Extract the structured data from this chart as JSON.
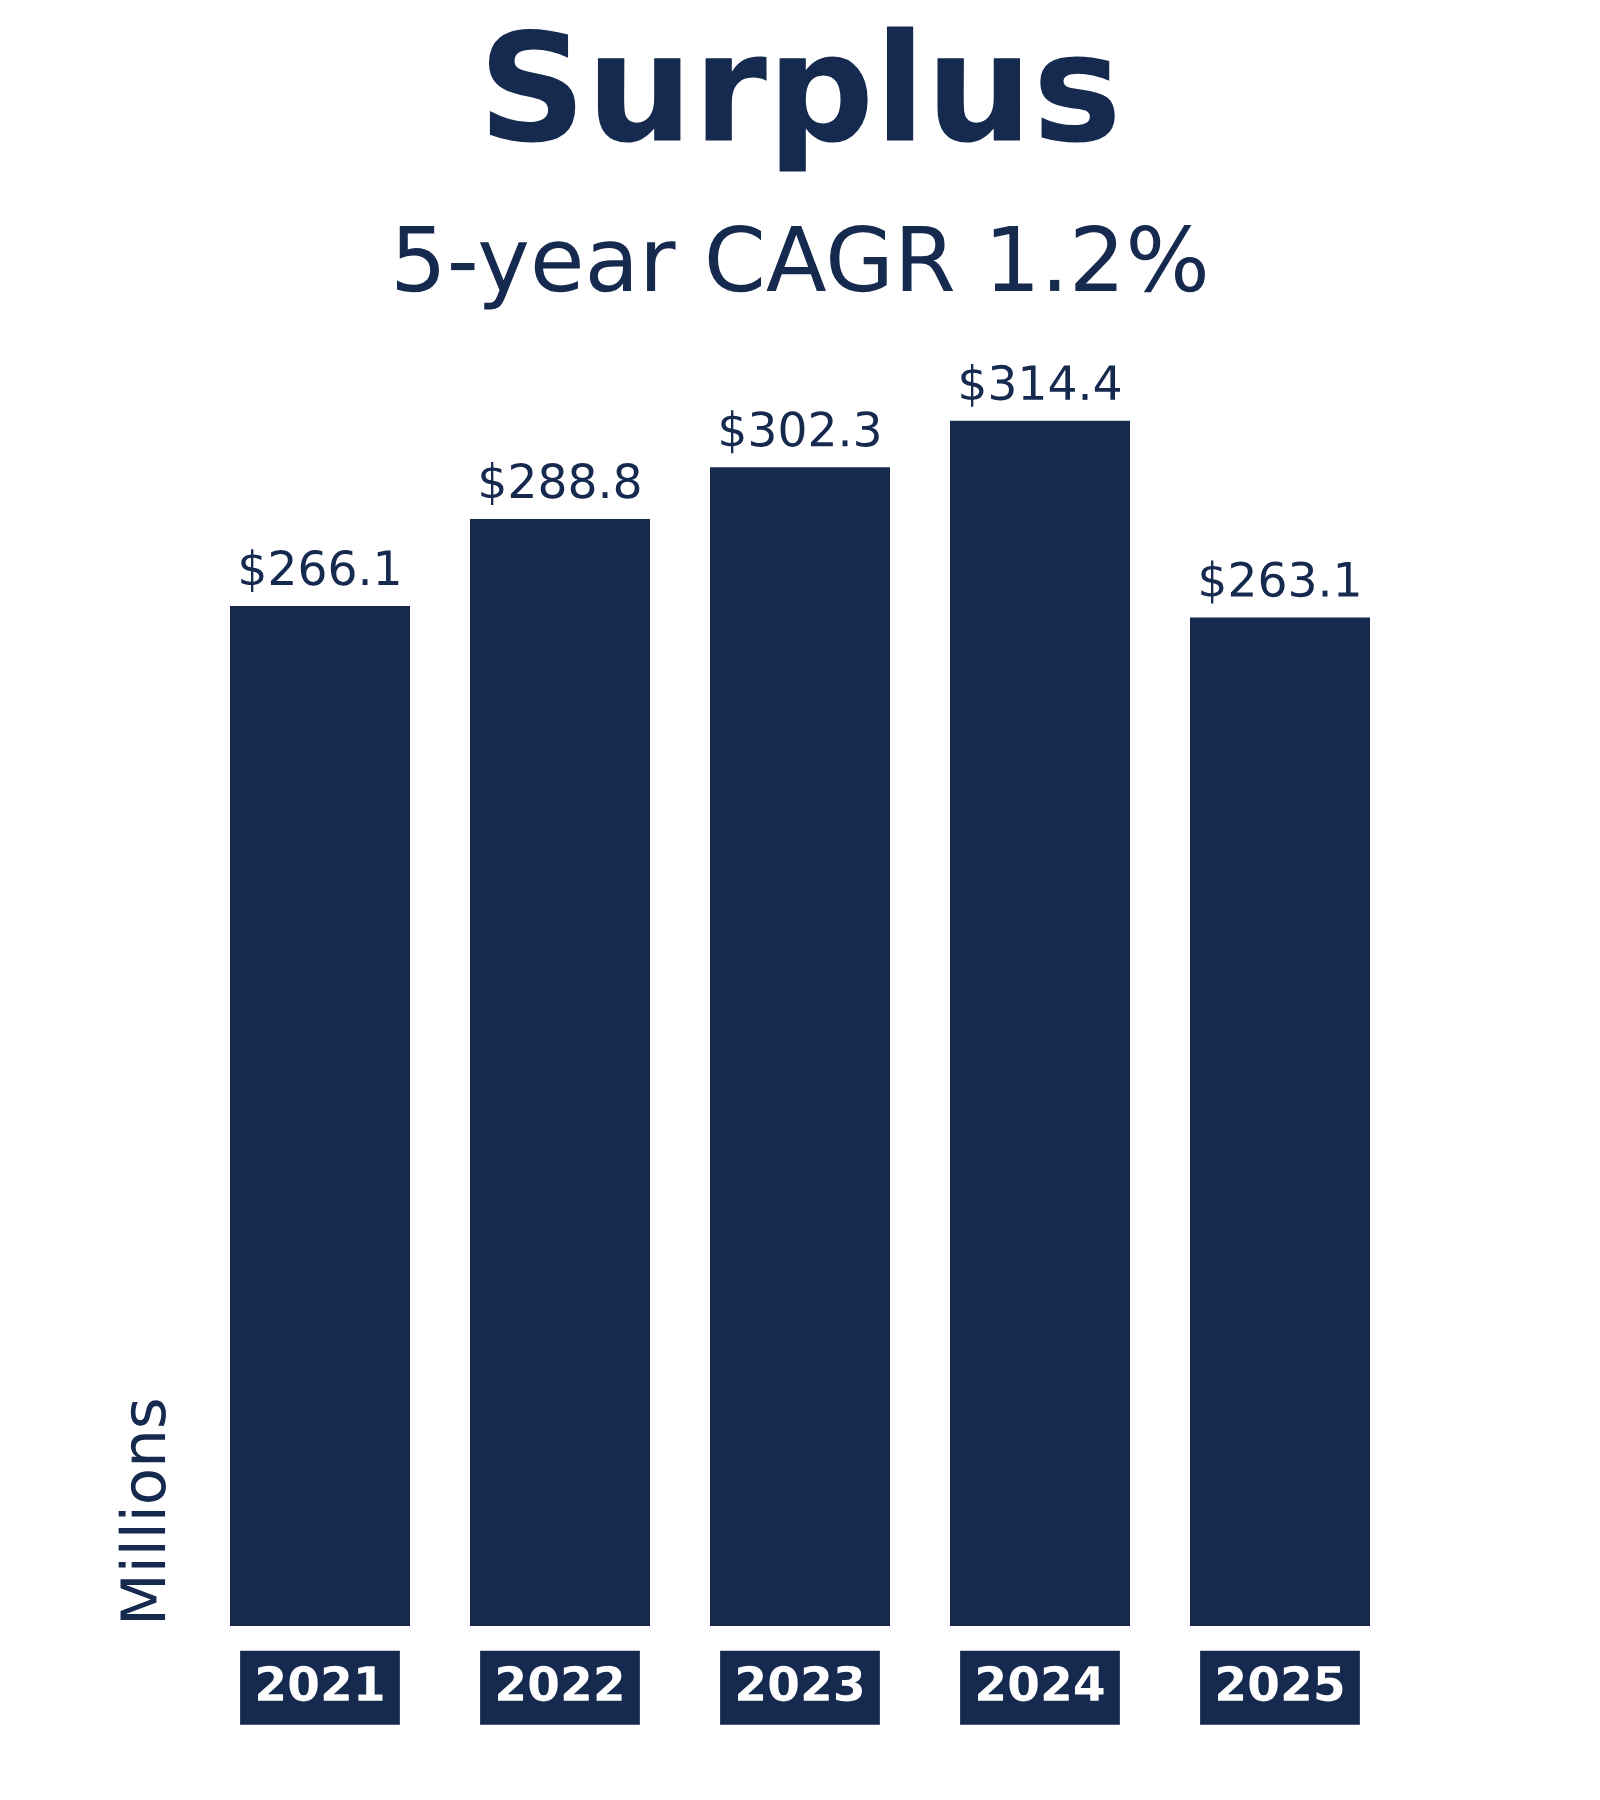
{
  "chart_data": {
    "type": "bar",
    "title": "Surplus",
    "subtitle": "5-year CAGR 1.2%",
    "ylabel": "Millions",
    "categories": [
      "2021",
      "2022",
      "2023",
      "2024",
      "2025"
    ],
    "values": [
      266.1,
      288.8,
      302.3,
      314.4,
      263.1
    ],
    "value_labels": [
      "$266.1",
      "$288.8",
      "$302.3",
      "$314.4",
      "$263.1"
    ],
    "color": "#162a4f",
    "grid": false
  }
}
